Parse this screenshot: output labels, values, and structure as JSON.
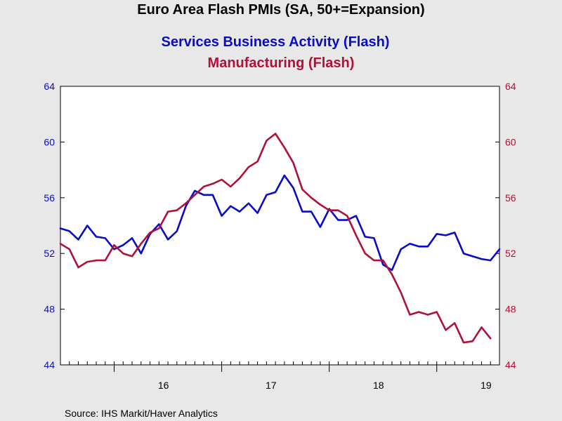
{
  "chart_data": {
    "type": "line",
    "title": "Euro Area Flash PMIs (SA, 50+=Expansion)",
    "source": "Source:  IHS Markit/Haver Analytics",
    "x_tick_labels": [
      "16",
      "17",
      "18",
      "19"
    ],
    "y_ticks": [
      "44",
      "48",
      "52",
      "56",
      "60",
      "64"
    ],
    "ylim_left": [
      44,
      64
    ],
    "ylim_right": [
      44,
      64
    ],
    "grid": false,
    "x_start": "2015-07",
    "series": [
      {
        "name": "Services Business Activity (Flash)",
        "axis": "left",
        "color": "#0a0ac8",
        "values": [
          53.8,
          53.6,
          53.0,
          54.0,
          53.2,
          53.1,
          52.3,
          52.6,
          53.1,
          52.0,
          53.4,
          54.1,
          53.0,
          53.6,
          55.4,
          56.5,
          56.2,
          56.2,
          54.7,
          55.4,
          55.0,
          55.6,
          54.9,
          56.2,
          56.4,
          57.6,
          56.7,
          55.0,
          55.0,
          53.9,
          55.2,
          54.4,
          54.4,
          54.7,
          53.2,
          53.1,
          51.2,
          50.8,
          52.3,
          52.7,
          52.5,
          52.5,
          53.4,
          53.3,
          53.5,
          52.0,
          51.8,
          51.6,
          51.5,
          52.3
        ]
      },
      {
        "name": "Manufacturing (Flash)",
        "axis": "right",
        "color": "#b0103a",
        "values": [
          52.7,
          52.3,
          51.0,
          51.4,
          51.5,
          51.5,
          52.6,
          52.0,
          51.8,
          52.7,
          53.5,
          53.8,
          55.0,
          55.1,
          55.6,
          56.2,
          56.8,
          57.0,
          57.3,
          56.8,
          57.4,
          58.2,
          58.6,
          60.1,
          60.6,
          59.6,
          58.5,
          56.6,
          56.0,
          55.5,
          55.1,
          55.1,
          54.7,
          53.3,
          52.0,
          51.5,
          51.5,
          50.5,
          49.2,
          47.6,
          47.8,
          47.6,
          47.8,
          46.5,
          47.0,
          45.6,
          45.7,
          46.7,
          45.9
        ]
      }
    ]
  }
}
